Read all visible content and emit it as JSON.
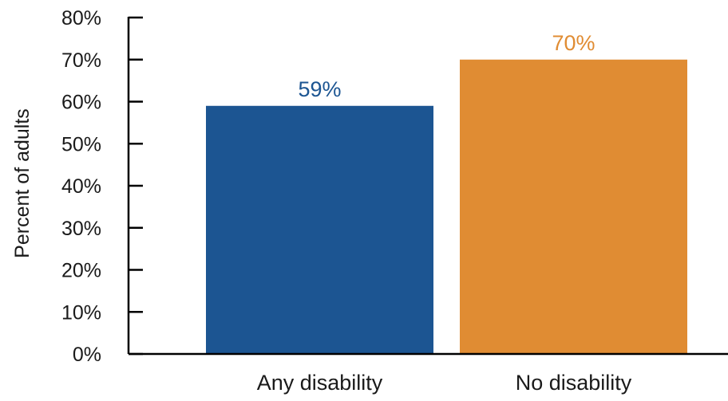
{
  "chart_data": {
    "type": "bar",
    "title": "",
    "xlabel": "",
    "ylabel": "Percent of adults",
    "ylim": [
      0,
      80
    ],
    "yticks": [
      0,
      10,
      20,
      30,
      40,
      50,
      60,
      70,
      80
    ],
    "ytick_labels": [
      "0%",
      "10%",
      "20%",
      "30%",
      "40%",
      "50%",
      "60%",
      "70%",
      "80%"
    ],
    "grid": false,
    "legend": "none",
    "categories": [
      "Any disability",
      "No disability"
    ],
    "values": [
      59,
      70
    ],
    "data_labels": [
      "59%",
      "70%"
    ],
    "colors": [
      "#1c5592",
      "#e08c33"
    ]
  }
}
